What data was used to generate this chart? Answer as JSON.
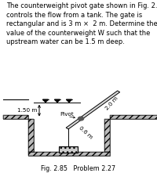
{
  "text_block": "The counterweight pivot gate shown in Fig. 2.85\ncontrols the flow from a tank. The gate is\nrectangular and is 3 m ×  2 m. Determine the\nvalue of the counterweight W such that the\nupstream water can be 1.5 m deep.",
  "fig_label": "Fig. 2.85   Problem 2.27",
  "label_150": "1.50 m",
  "label_pivot": "Pivot",
  "label_06": "0.6 m",
  "label_20": "2.0 m",
  "bg_color": "#ffffff",
  "text_fontsize": 6.0,
  "fig_label_fontsize": 5.8,
  "diagram_text_fontsize": 5.2
}
